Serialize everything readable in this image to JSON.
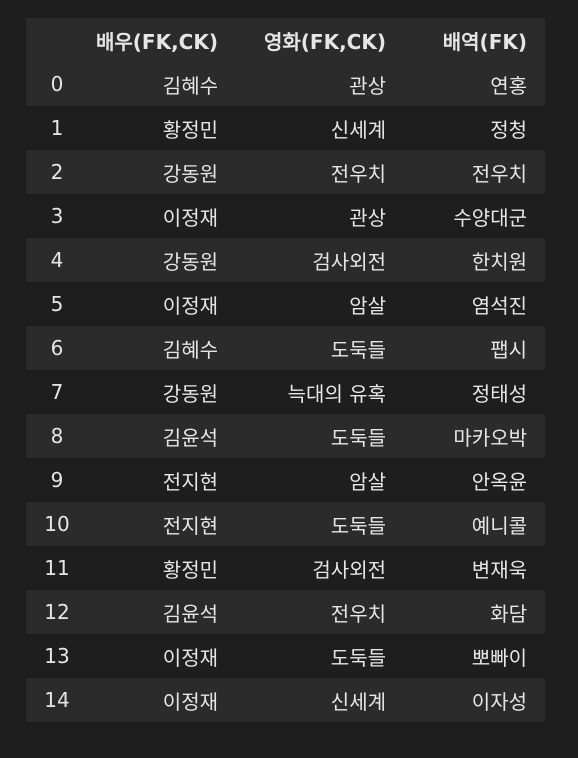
{
  "table": {
    "columns": {
      "index": "",
      "actor": "배우(FK,CK)",
      "movie": "영화(FK,CK)",
      "role": "배역(FK)"
    },
    "rows": [
      {
        "index": "0",
        "actor": "김혜수",
        "movie": "관상",
        "role": "연홍"
      },
      {
        "index": "1",
        "actor": "황정민",
        "movie": "신세계",
        "role": "정청"
      },
      {
        "index": "2",
        "actor": "강동원",
        "movie": "전우치",
        "role": "전우치"
      },
      {
        "index": "3",
        "actor": "이정재",
        "movie": "관상",
        "role": "수양대군"
      },
      {
        "index": "4",
        "actor": "강동원",
        "movie": "검사외전",
        "role": "한치원"
      },
      {
        "index": "5",
        "actor": "이정재",
        "movie": "암살",
        "role": "염석진"
      },
      {
        "index": "6",
        "actor": "김혜수",
        "movie": "도둑들",
        "role": "팹시"
      },
      {
        "index": "7",
        "actor": "강동원",
        "movie": "늑대의 유혹",
        "role": "정태성"
      },
      {
        "index": "8",
        "actor": "김윤석",
        "movie": "도둑들",
        "role": "마카오박"
      },
      {
        "index": "9",
        "actor": "전지현",
        "movie": "암살",
        "role": "안옥윤"
      },
      {
        "index": "10",
        "actor": "전지현",
        "movie": "도둑들",
        "role": "예니콜"
      },
      {
        "index": "11",
        "actor": "황정민",
        "movie": "검사외전",
        "role": "변재욱"
      },
      {
        "index": "12",
        "actor": "김윤석",
        "movie": "전우치",
        "role": "화담"
      },
      {
        "index": "13",
        "actor": "이정재",
        "movie": "도둑들",
        "role": "뽀빠이"
      },
      {
        "index": "14",
        "actor": "이정재",
        "movie": "신세계",
        "role": "이자성"
      }
    ]
  },
  "colors": {
    "background": "#1e1e1e",
    "row_alt": "#2b2b2b",
    "text": "#e6e6e6"
  }
}
